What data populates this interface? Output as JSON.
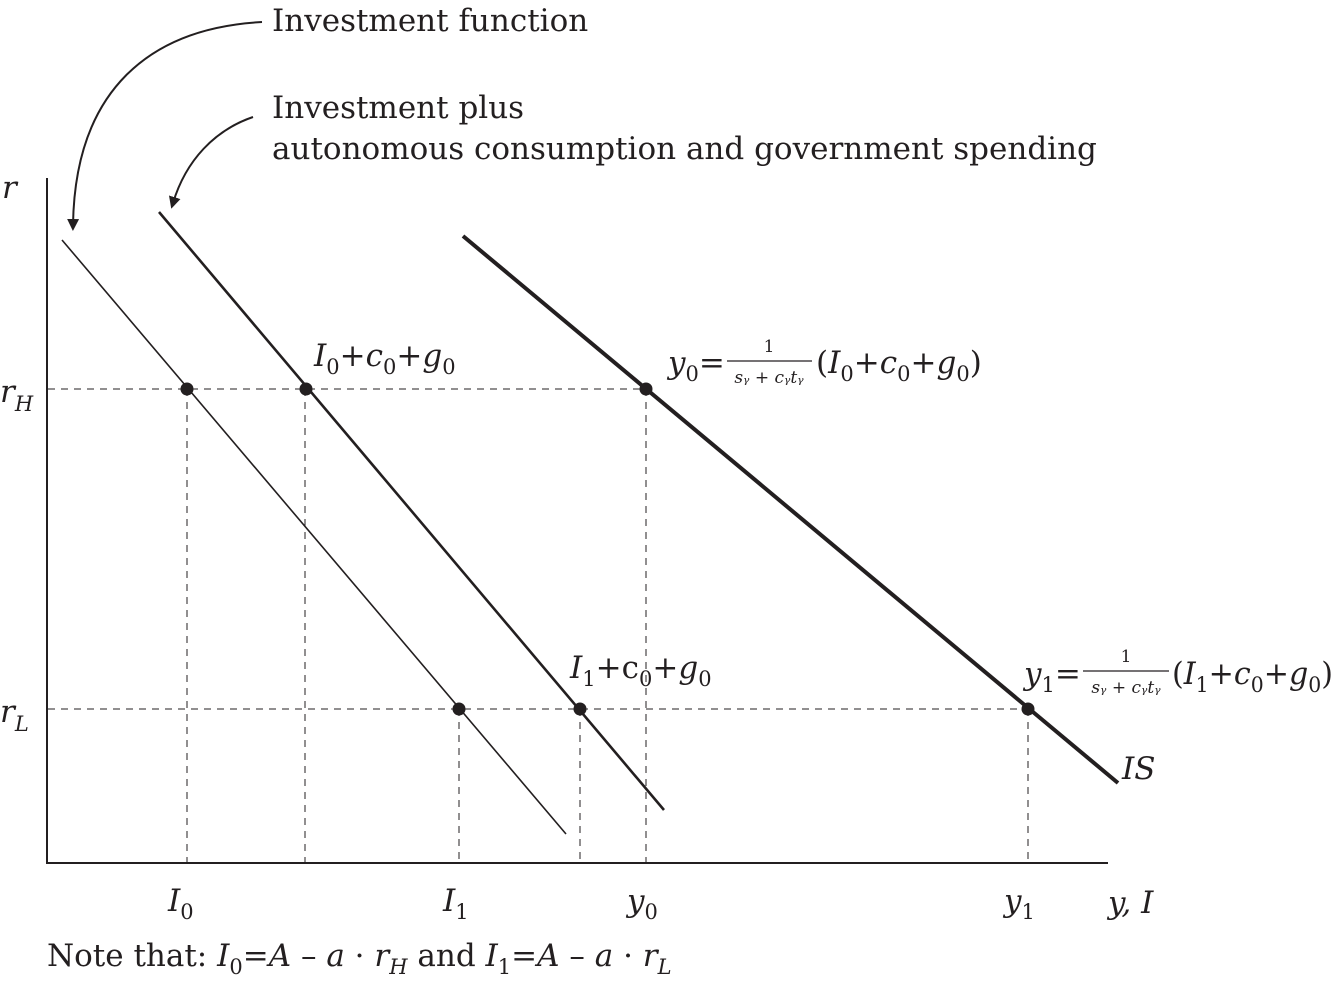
{
  "annotations": {
    "investment_function": "Investment function",
    "investment_plus_line1": "Investment plus",
    "investment_plus_line2": "autonomous consumption and government spending"
  },
  "axes": {
    "y_label": "r",
    "x_label": "y, I",
    "r_high": {
      "base": "r",
      "sub": "H"
    },
    "r_low": {
      "base": "r",
      "sub": "L"
    }
  },
  "x_ticks": {
    "I0": {
      "base": "I",
      "sub": "0"
    },
    "I1": {
      "base": "I",
      "sub": "1"
    },
    "y0": {
      "base": "y",
      "sub": "0"
    },
    "y1": {
      "base": "y",
      "sub": "1"
    }
  },
  "curve_labels": {
    "is": "IS",
    "point_upper": {
      "I": "I",
      "Isub": "0",
      "plus1": "+",
      "c": "c",
      "csub": "0",
      "plus2": "+",
      "g": "g",
      "gsub": "0"
    },
    "point_lower": {
      "I": "I",
      "Isub": "1",
      "plus1": "+",
      "c": "c",
      "csub": "0",
      "plus2": "+",
      "g": "g",
      "gsub": "0"
    }
  },
  "equations": {
    "y0": {
      "lhs": "y",
      "lhs_sub": "0",
      "eq": "=",
      "num": "1",
      "den": "sᵧ + cᵧtᵧ",
      "open": "(",
      "I": "I",
      "Isub": "0",
      "plus1": "+",
      "c": "c",
      "csub": "0",
      "plus2": "+",
      "g": "g",
      "gsub": "0",
      "close": ")"
    },
    "y1": {
      "lhs": "y",
      "lhs_sub": "1",
      "eq": "=",
      "num": "1",
      "den": "sᵧ + cᵧtᵧ",
      "open": "(",
      "I": "I",
      "Isub": "1",
      "plus1": "+",
      "c": "c",
      "csub": "0",
      "plus2": "+",
      "g": "g",
      "gsub": "0",
      "close": ")"
    }
  },
  "note": {
    "prefix": "Note that: ",
    "I0": "I",
    "I0sub": "0",
    "eq1": "=",
    "A1": "A",
    "minus1": " – ",
    "a1": "a",
    "dot1": " · ",
    "rH": "r",
    "rHsub": "H",
    "and": " and ",
    "I1": "I",
    "I1sub": "1",
    "eq2": "=",
    "A2": "A",
    "minus2": " – ",
    "a2": "a",
    "dot2": " · ",
    "rL": "r",
    "rLsub": "L"
  },
  "colors": {
    "ink": "#231f20",
    "background": "#ffffff"
  }
}
